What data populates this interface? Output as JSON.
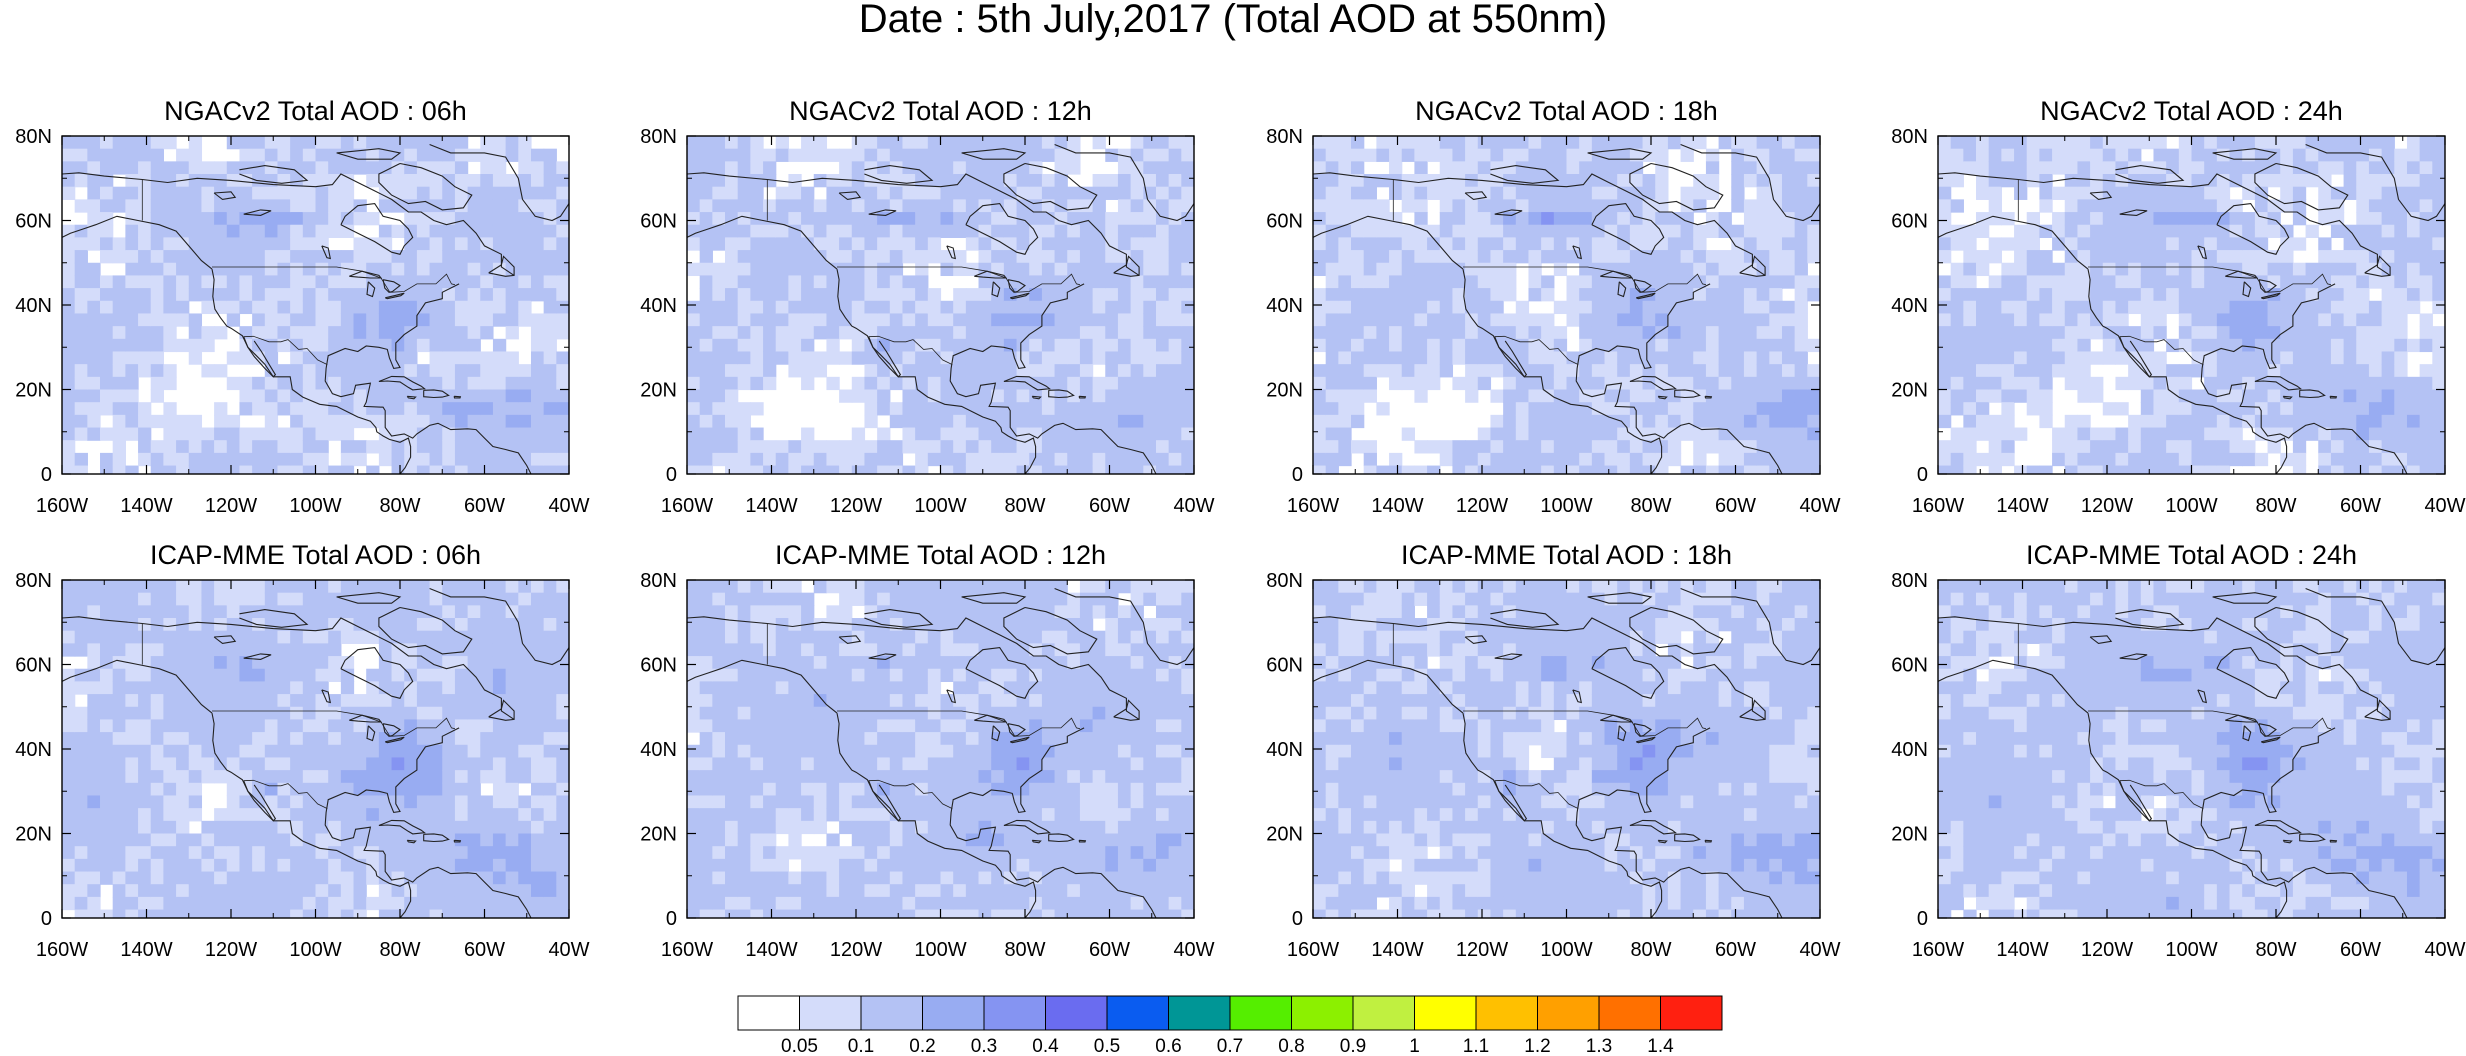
{
  "title": "Date : 5th July,2017 (Total AOD at 550nm)",
  "axes": {
    "lon_labels": [
      "160W",
      "140W",
      "120W",
      "100W",
      "80W",
      "60W",
      "40W"
    ],
    "lat_labels": [
      "80N",
      "60N",
      "40N",
      "20N",
      "0"
    ],
    "lon_range": [
      -160,
      -40
    ],
    "lat_range": [
      0,
      80
    ]
  },
  "panels": [
    {
      "title": "NGACv2 Total AOD : 06h",
      "model": "NGACv2",
      "hour": "06h"
    },
    {
      "title": "NGACv2 Total AOD : 12h",
      "model": "NGACv2",
      "hour": "12h"
    },
    {
      "title": "NGACv2 Total AOD : 18h",
      "model": "NGACv2",
      "hour": "18h"
    },
    {
      "title": "NGACv2 Total AOD : 24h",
      "model": "NGACv2",
      "hour": "24h"
    },
    {
      "title": "ICAP-MME Total AOD : 06h",
      "model": "ICAP-MME",
      "hour": "06h"
    },
    {
      "title": "ICAP-MME Total AOD : 12h",
      "model": "ICAP-MME",
      "hour": "12h"
    },
    {
      "title": "ICAP-MME Total AOD : 18h",
      "model": "ICAP-MME",
      "hour": "18h"
    },
    {
      "title": "ICAP-MME Total AOD : 24h",
      "model": "ICAP-MME",
      "hour": "24h"
    }
  ],
  "colorbar": {
    "labels": [
      "0.05",
      "0.1",
      "0.2",
      "0.3",
      "0.4",
      "0.5",
      "0.6",
      "0.7",
      "0.8",
      "0.9",
      "1",
      "1.1",
      "1.2",
      "1.3",
      "1.4"
    ],
    "colors": [
      "#ffffff",
      "#d4dcfa",
      "#b4c2f4",
      "#98acf2",
      "#8594f2",
      "#6a6cf0",
      "#0a5cf0",
      "#009696",
      "#55ee00",
      "#8cf000",
      "#c0f040",
      "#ffff00",
      "#ffc000",
      "#ffa000",
      "#ff7000",
      "#ff2010"
    ]
  }
}
